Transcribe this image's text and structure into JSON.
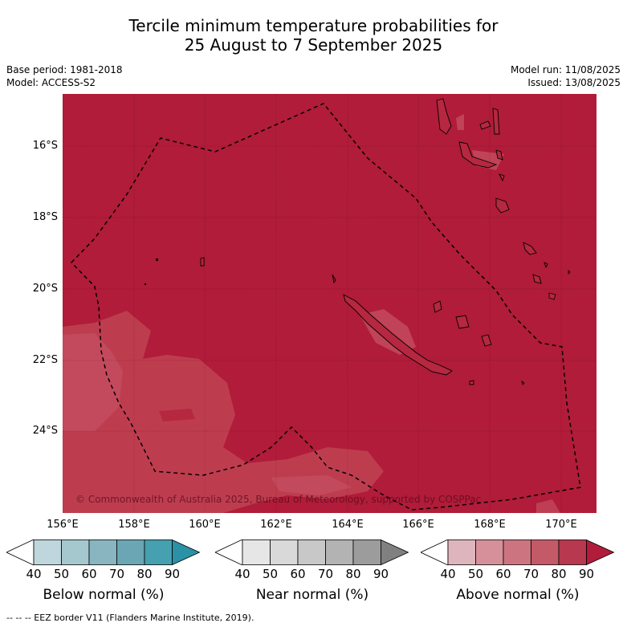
{
  "title_line1": "Tercile minimum temperature probabilities for",
  "title_line2": "25 August to 7 September 2025",
  "base_period": "Base period: 1981-2018",
  "model": "Model: ACCESS-S2",
  "model_run": "Model run: 11/08/2025",
  "issued": "Issued: 13/08/2025",
  "copyright": "© Commonwealth of Australia 2025, Bureau of Meteorology, supported by COSPPac",
  "footer": "--  --  -- EEZ border V11 (Flanders Marine Institute, 2019).",
  "lat_ticks": [
    "16°S",
    "18°S",
    "20°S",
    "22°S",
    "24°S"
  ],
  "lon_ticks": [
    "156°E",
    "158°E",
    "160°E",
    "162°E",
    "164°E",
    "166°E",
    "168°E",
    "170°E"
  ],
  "colorbars": [
    {
      "label": "Below normal (%)",
      "ticks": [
        "40",
        "50",
        "60",
        "70",
        "80",
        "90"
      ],
      "colors": [
        "#bfd6dc",
        "#a5c7ce",
        "#88b5bf",
        "#6aa6b3",
        "#45a0b0",
        "#2a91a6"
      ]
    },
    {
      "label": "Near normal (%)",
      "ticks": [
        "40",
        "50",
        "60",
        "70",
        "80",
        "90"
      ],
      "colors": [
        "#e6e6e6",
        "#d9d9d9",
        "#c8c8c8",
        "#b3b3b3",
        "#9c9c9c",
        "#808080"
      ]
    },
    {
      "label": "Above normal (%)",
      "ticks": [
        "40",
        "50",
        "60",
        "70",
        "80",
        "90"
      ],
      "colors": [
        "#dfb5bd",
        "#d6909a",
        "#cc7580",
        "#c45a68",
        "#b8384f",
        "#b01c3a"
      ]
    }
  ],
  "map": {
    "background_color": "#b01c3a",
    "lighter_color": "#c0404f",
    "lightest_color": "#c75a68"
  }
}
